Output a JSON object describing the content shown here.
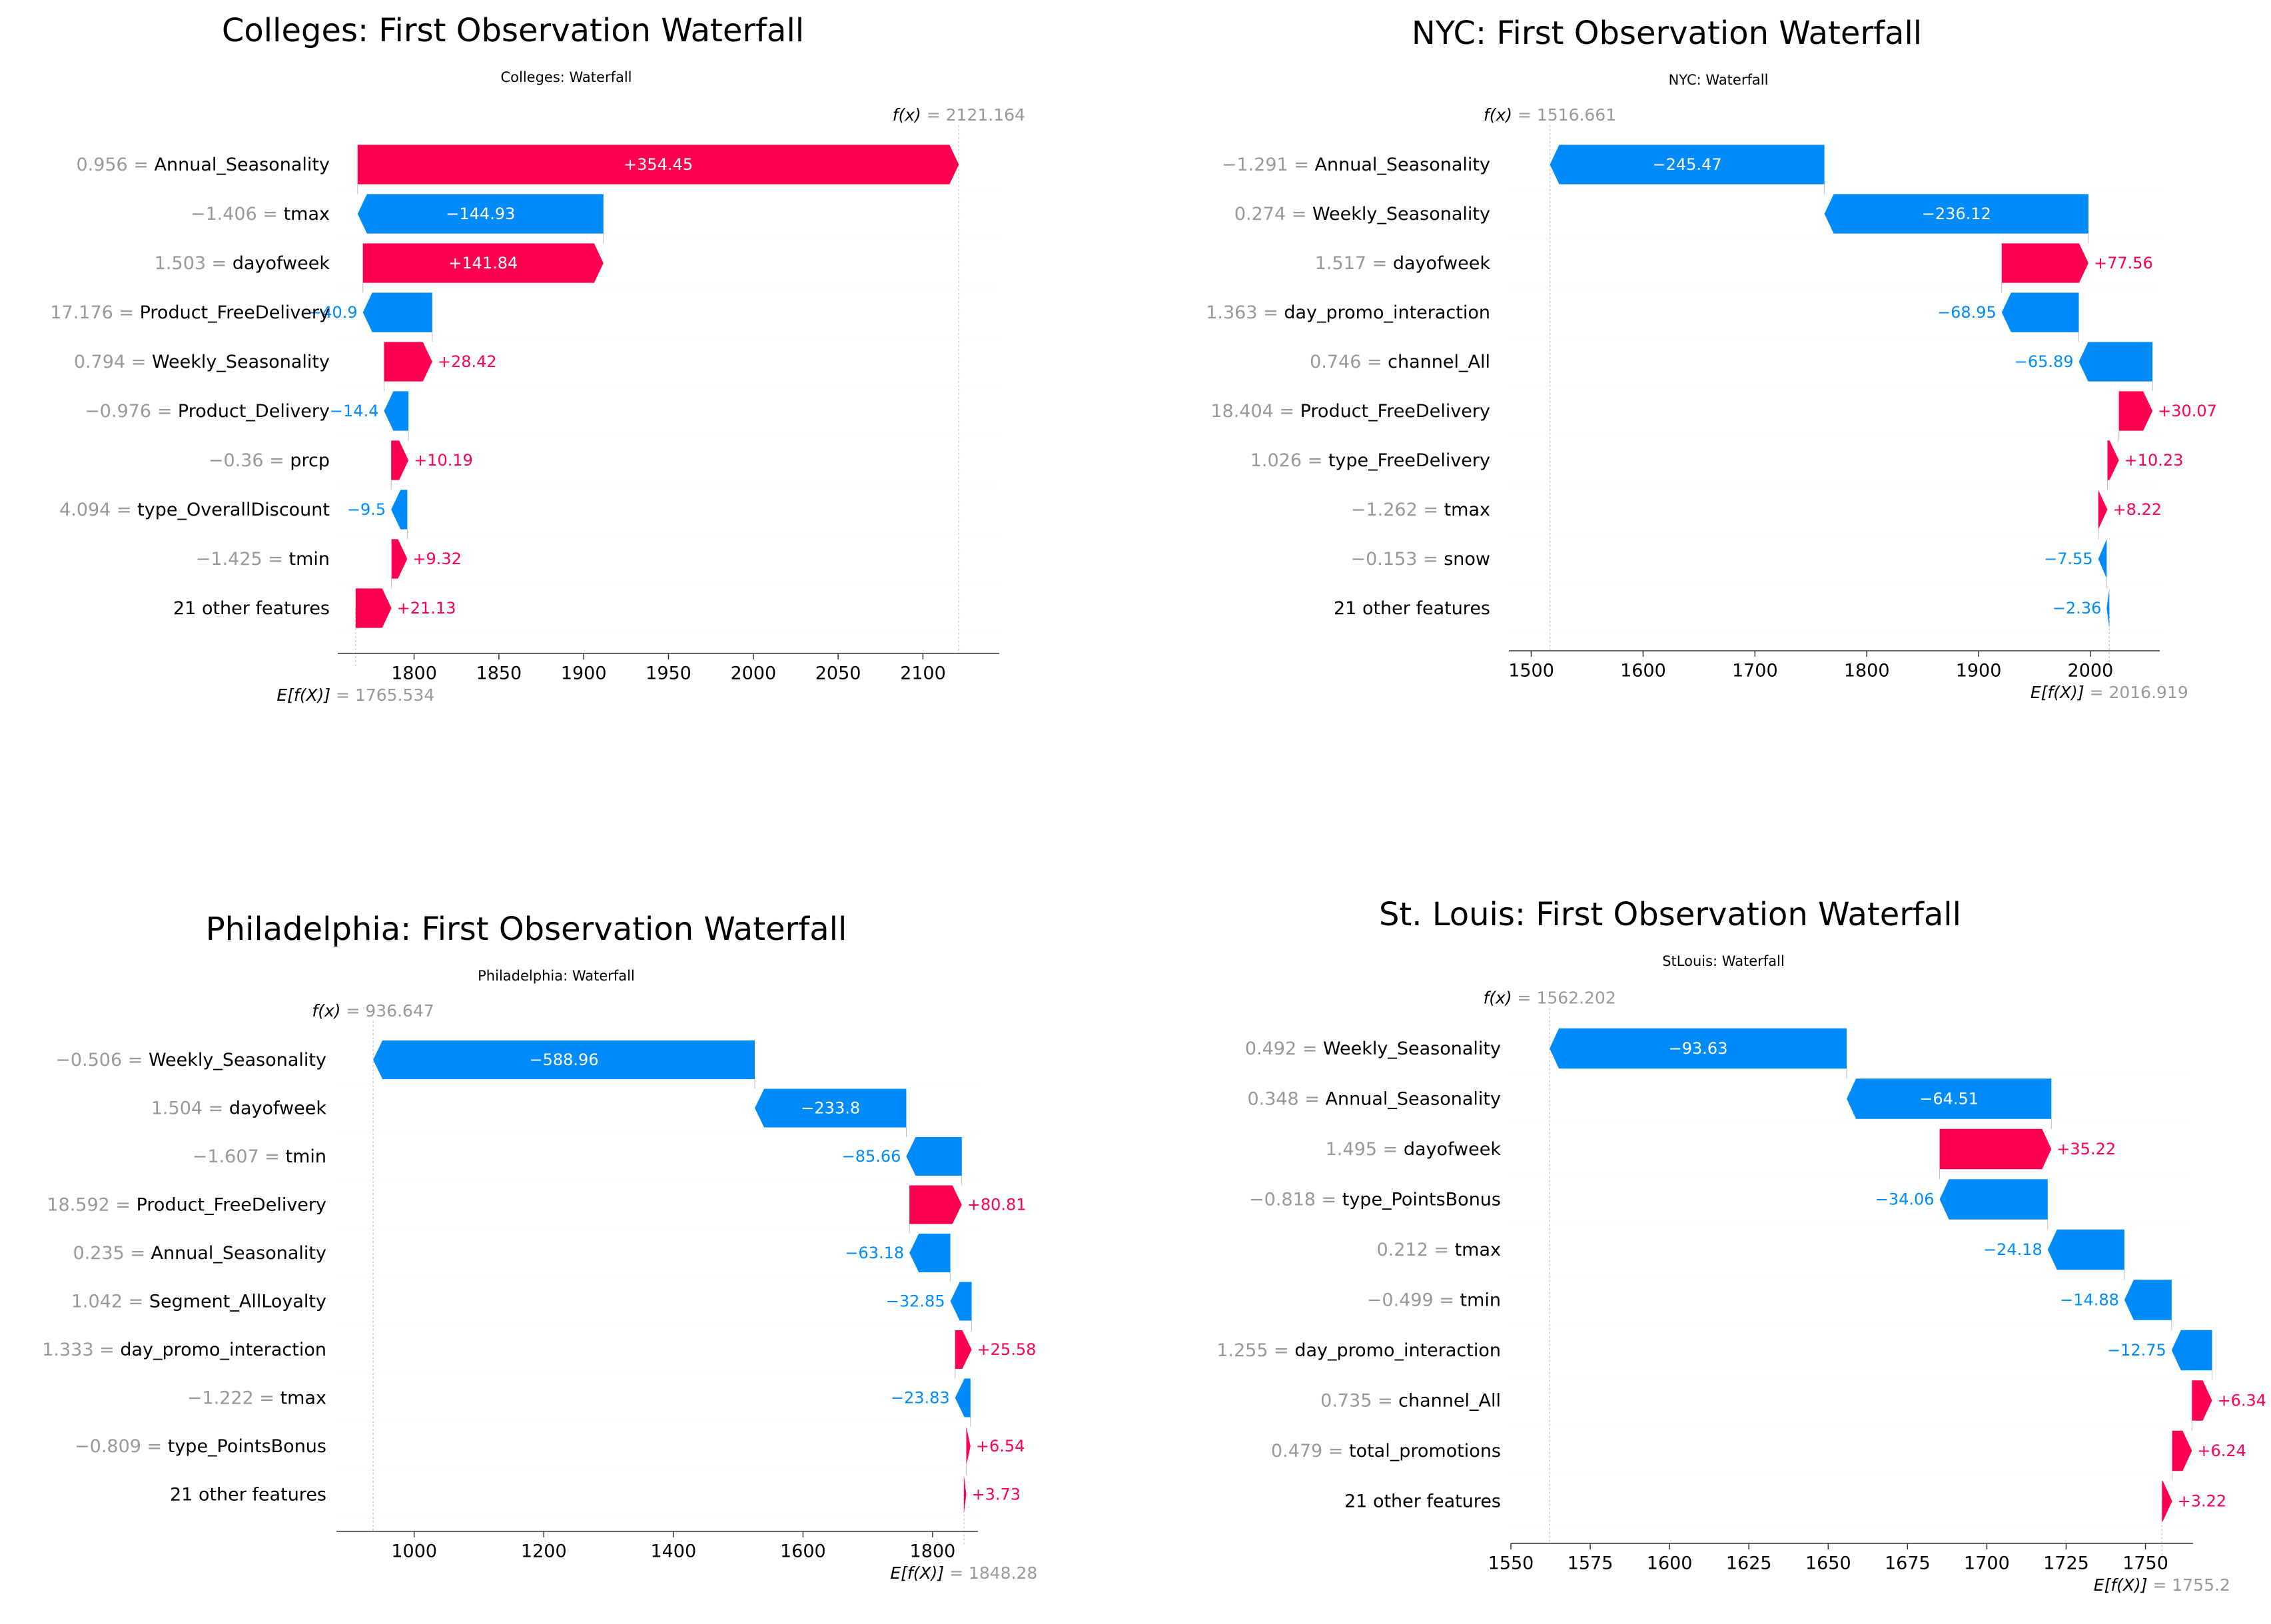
{
  "colors": {
    "positive": "#ff0051",
    "negative": "#008bfb",
    "feature_value": "#999999",
    "text": "#000000",
    "grid": "#cccccc"
  },
  "chart_data": [
    {
      "type": "waterfall",
      "title": "Colleges: First Observation Waterfall",
      "subtitle": "Colleges: Waterfall",
      "base_value": 1765.534,
      "base_label": "E[f(X)]",
      "base_value_text": "= 1765.534",
      "fx": 2121.164,
      "fx_label": "f(x)",
      "fx_value_text": "= 2121.164",
      "xlim": [
        1755,
        2145
      ],
      "xticks": [
        1800,
        1850,
        1900,
        1950,
        2000,
        2050,
        2100
      ],
      "features": [
        {
          "value": "0.956",
          "name": "Annual_Seasonality",
          "contribution": 354.45,
          "label": "+354.45"
        },
        {
          "value": "−1.406",
          "name": "tmax",
          "contribution": -144.93,
          "label": "−144.93"
        },
        {
          "value": "1.503",
          "name": "dayofweek",
          "contribution": 141.84,
          "label": "+141.84"
        },
        {
          "value": "17.176",
          "name": "Product_FreeDelivery",
          "contribution": -40.9,
          "label": "−40.9"
        },
        {
          "value": "0.794",
          "name": "Weekly_Seasonality",
          "contribution": 28.42,
          "label": "+28.42"
        },
        {
          "value": "−0.976",
          "name": "Product_Delivery",
          "contribution": -14.4,
          "label": "−14.4"
        },
        {
          "value": "−0.36",
          "name": "prcp",
          "contribution": 10.19,
          "label": "+10.19"
        },
        {
          "value": "4.094",
          "name": "type_OverallDiscount",
          "contribution": -9.5,
          "label": "−9.5"
        },
        {
          "value": "−1.425",
          "name": "tmin",
          "contribution": 9.32,
          "label": "+9.32"
        },
        {
          "value": "",
          "name": "21 other features",
          "contribution": 21.13,
          "label": "+21.13"
        }
      ]
    },
    {
      "type": "waterfall",
      "title": "NYC: First Observation Waterfall",
      "subtitle": "NYC: Waterfall",
      "base_value": 2016.919,
      "base_label": "E[f(X)]",
      "base_value_text": "= 2016.919",
      "fx": 1516.661,
      "fx_label": "f(x)",
      "fx_value_text": "= 1516.661",
      "xlim": [
        1480,
        2062
      ],
      "xticks": [
        1500,
        1600,
        1700,
        1800,
        1900,
        2000
      ],
      "features": [
        {
          "value": "−1.291",
          "name": "Annual_Seasonality",
          "contribution": -245.47,
          "label": "−245.47"
        },
        {
          "value": "0.274",
          "name": "Weekly_Seasonality",
          "contribution": -236.12,
          "label": "−236.12"
        },
        {
          "value": "1.517",
          "name": "dayofweek",
          "contribution": 77.56,
          "label": "+77.56"
        },
        {
          "value": "1.363",
          "name": "day_promo_interaction",
          "contribution": -68.95,
          "label": "−68.95"
        },
        {
          "value": "0.746",
          "name": "channel_All",
          "contribution": -65.89,
          "label": "−65.89"
        },
        {
          "value": "18.404",
          "name": "Product_FreeDelivery",
          "contribution": 30.07,
          "label": "+30.07"
        },
        {
          "value": "1.026",
          "name": "type_FreeDelivery",
          "contribution": 10.23,
          "label": "+10.23"
        },
        {
          "value": "−1.262",
          "name": "tmax",
          "contribution": 8.22,
          "label": "+8.22"
        },
        {
          "value": "−0.153",
          "name": "snow",
          "contribution": -7.55,
          "label": "−7.55"
        },
        {
          "value": "",
          "name": "21 other features",
          "contribution": -2.36,
          "label": "−2.36"
        }
      ]
    },
    {
      "type": "waterfall",
      "title": "Philadelphia: First Observation Waterfall",
      "subtitle": "Philadelphia: Waterfall",
      "base_value": 1848.28,
      "base_label": "E[f(X)]",
      "base_value_text": "= 1848.28",
      "fx": 936.647,
      "fx_label": "f(x)",
      "fx_value_text": "= 936.647",
      "xlim": [
        880,
        1870
      ],
      "xticks": [
        1000,
        1200,
        1400,
        1600,
        1800
      ],
      "features": [
        {
          "value": "−0.506",
          "name": "Weekly_Seasonality",
          "contribution": -588.96,
          "label": "−588.96"
        },
        {
          "value": "1.504",
          "name": "dayofweek",
          "contribution": -233.8,
          "label": "−233.8"
        },
        {
          "value": "−1.607",
          "name": "tmin",
          "contribution": -85.66,
          "label": "−85.66"
        },
        {
          "value": "18.592",
          "name": "Product_FreeDelivery",
          "contribution": 80.81,
          "label": "+80.81"
        },
        {
          "value": "0.235",
          "name": "Annual_Seasonality",
          "contribution": -63.18,
          "label": "−63.18"
        },
        {
          "value": "1.042",
          "name": "Segment_AllLoyalty",
          "contribution": -32.85,
          "label": "−32.85"
        },
        {
          "value": "1.333",
          "name": "day_promo_interaction",
          "contribution": 25.58,
          "label": "+25.58"
        },
        {
          "value": "−1.222",
          "name": "tmax",
          "contribution": -23.83,
          "label": "−23.83"
        },
        {
          "value": "−0.809",
          "name": "type_PointsBonus",
          "contribution": 6.54,
          "label": "+6.54"
        },
        {
          "value": "",
          "name": "21 other features",
          "contribution": 3.73,
          "label": "+3.73"
        }
      ]
    },
    {
      "type": "waterfall",
      "title": "St. Louis: First Observation Waterfall",
      "subtitle": "StLouis: Waterfall",
      "base_value": 1755.2,
      "base_label": "E[f(X)]",
      "base_value_text": "= 1755.2",
      "fx": 1562.202,
      "fx_label": "f(x)",
      "fx_value_text": "= 1562.202",
      "xlim": [
        1550,
        1765
      ],
      "xticks": [
        1550,
        1575,
        1600,
        1625,
        1650,
        1675,
        1700,
        1725,
        1750
      ],
      "features": [
        {
          "value": "0.492",
          "name": "Weekly_Seasonality",
          "contribution": -93.63,
          "label": "−93.63"
        },
        {
          "value": "0.348",
          "name": "Annual_Seasonality",
          "contribution": -64.51,
          "label": "−64.51"
        },
        {
          "value": "1.495",
          "name": "dayofweek",
          "contribution": 35.22,
          "label": "+35.22"
        },
        {
          "value": "−0.818",
          "name": "type_PointsBonus",
          "contribution": -34.06,
          "label": "−34.06"
        },
        {
          "value": "0.212",
          "name": "tmax",
          "contribution": -24.18,
          "label": "−24.18"
        },
        {
          "value": "−0.499",
          "name": "tmin",
          "contribution": -14.88,
          "label": "−14.88"
        },
        {
          "value": "1.255",
          "name": "day_promo_interaction",
          "contribution": -12.75,
          "label": "−12.75"
        },
        {
          "value": "0.735",
          "name": "channel_All",
          "contribution": 6.34,
          "label": "+6.34"
        },
        {
          "value": "0.479",
          "name": "total_promotions",
          "contribution": 6.24,
          "label": "+6.24"
        },
        {
          "value": "",
          "name": "21 other features",
          "contribution": 3.22,
          "label": "+3.22"
        }
      ]
    }
  ]
}
